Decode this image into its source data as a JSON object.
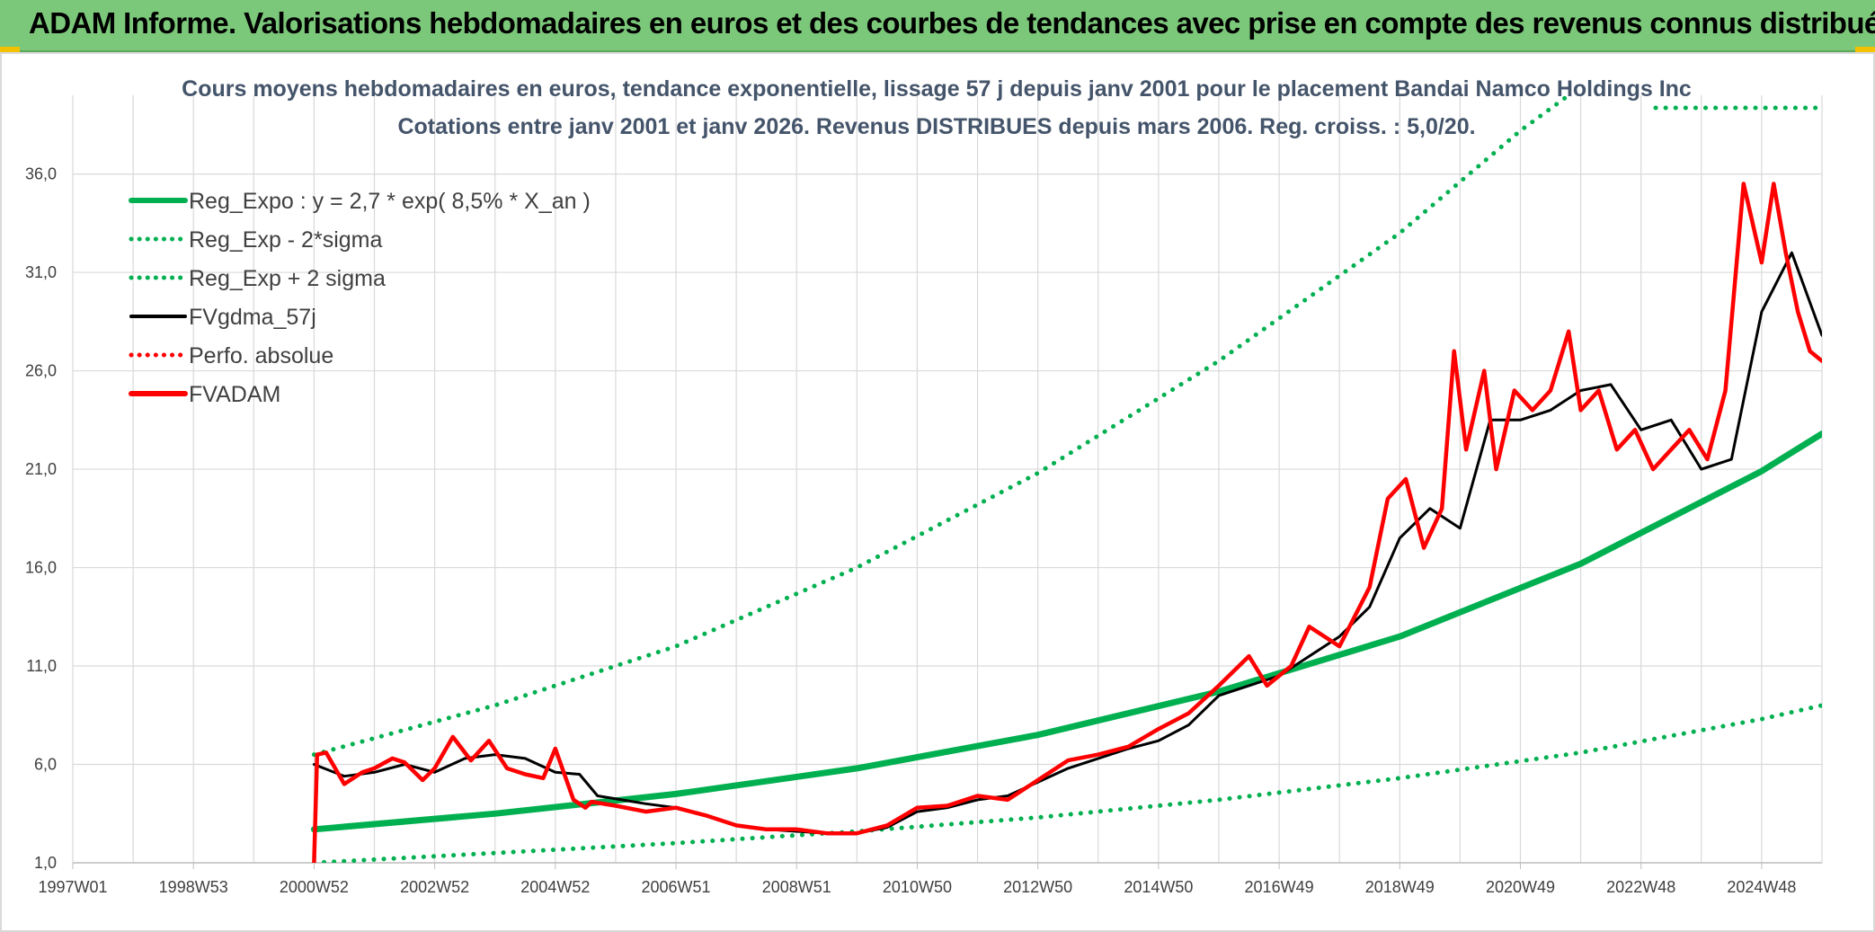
{
  "header": {
    "title": "ADAM Informe. Valorisations hebdomadaires en euros et des courbes de tendances avec prise en compte des revenus connus distribués"
  },
  "colors": {
    "green": "#00b050",
    "red": "#ff0000",
    "black": "#000000",
    "grid": "#d9d9d9",
    "header_bg": "#7cc87a"
  },
  "chart_data": {
    "type": "line",
    "title": "Cours moyens hebdomadaires en euros, tendance exponentielle, lissage 57 j depuis janv 2001 pour le placement Bandai Namco Holdings Inc",
    "subtitle": "Cotations entre janv 2001 et janv 2026. Revenus DISTRIBUES depuis mars 2006. Reg. croiss. : 5,0/20.",
    "xlabel": "",
    "ylabel": "",
    "xlim": [
      1997.0,
      2026.0
    ],
    "ylim": [
      1.0,
      40.0
    ],
    "y_ticks": [
      1.0,
      6.0,
      11.0,
      16.0,
      21.0,
      26.0,
      31.0,
      36.0
    ],
    "y_tick_labels": [
      "1,0",
      "6,0",
      "11,0",
      "16,0",
      "21,0",
      "26,0",
      "31,0",
      "36,0"
    ],
    "x_ticks": [
      1997.0,
      1999.0,
      2001.0,
      2003.0,
      2005.0,
      2007.0,
      2009.0,
      2011.0,
      2013.0,
      2015.0,
      2017.0,
      2019.0,
      2021.0,
      2023.0,
      2025.0
    ],
    "x_tick_labels": [
      "1997W01",
      "1998W53",
      "2000W52",
      "2002W52",
      "2004W52",
      "2006W51",
      "2008W51",
      "2010W50",
      "2012W50",
      "2014W50",
      "2016W49",
      "2018W49",
      "2020W49",
      "2022W48",
      "2024W48"
    ],
    "legend_position": "top-left",
    "legend": [
      {
        "label": "Reg_Expo : y = 2,7 * exp( 8,5% *  X_an )",
        "style": "solid-thick",
        "color": "#00b050"
      },
      {
        "label": "Reg_Exp - 2*sigma",
        "style": "dotted",
        "color": "#00b050"
      },
      {
        "label": "Reg_Exp + 2 sigma",
        "style": "dotted",
        "color": "#00b050"
      },
      {
        "label": "FVgdma_57j",
        "style": "solid",
        "color": "#000000"
      },
      {
        "label": "Perfo. absolue",
        "style": "dotted",
        "color": "#ff0000"
      },
      {
        "label": "FVADAM",
        "style": "solid-thick",
        "color": "#ff0000"
      }
    ],
    "series": [
      {
        "name": "Reg_Expo",
        "color": "#00b050",
        "style": "solid",
        "x": [
          2001.0,
          2004.0,
          2007.0,
          2010.0,
          2013.0,
          2016.0,
          2019.0,
          2022.0,
          2025.0,
          2026.0
        ],
        "y": [
          2.7,
          3.5,
          4.5,
          5.8,
          7.5,
          9.7,
          12.5,
          16.2,
          20.9,
          22.8
        ]
      },
      {
        "name": "Reg_Exp - 2*sigma",
        "color": "#00b050",
        "style": "dotted",
        "x": [
          2001.0,
          2004.0,
          2007.0,
          2010.0,
          2013.0,
          2016.0,
          2019.0,
          2022.0,
          2025.0,
          2026.0
        ],
        "y": [
          1.0,
          1.5,
          2.0,
          2.6,
          3.3,
          4.2,
          5.3,
          6.6,
          8.3,
          9.0
        ]
      },
      {
        "name": "Reg_Exp + 2 sigma",
        "color": "#00b050",
        "style": "dotted",
        "x": [
          2001.0,
          2004.0,
          2007.0,
          2010.0,
          2013.0,
          2016.0,
          2019.0,
          2020.0,
          2021.0,
          2021.8
        ],
        "y": [
          6.5,
          9.0,
          12.0,
          16.0,
          20.8,
          26.5,
          33.0,
          35.6,
          38.2,
          40.0
        ]
      },
      {
        "name": "FVgdma_57j",
        "color": "#000000",
        "style": "solid",
        "x": [
          2001.0,
          2001.5,
          2002.0,
          2002.5,
          2003.0,
          2003.5,
          2004.0,
          2004.5,
          2005.0,
          2005.4,
          2005.7,
          2006.5,
          2007.0,
          2007.5,
          2008.0,
          2008.5,
          2009.0,
          2009.5,
          2010.0,
          2010.5,
          2011.0,
          2011.5,
          2012.0,
          2012.5,
          2013.0,
          2013.5,
          2014.0,
          2014.5,
          2015.0,
          2015.5,
          2016.0,
          2016.5,
          2017.0,
          2017.5,
          2018.0,
          2018.5,
          2019.0,
          2019.5,
          2020.0,
          2020.5,
          2021.0,
          2021.5,
          2022.0,
          2022.5,
          2023.0,
          2023.5,
          2024.0,
          2024.5,
          2025.0,
          2025.5,
          2026.0
        ],
        "y": [
          6.0,
          5.4,
          5.6,
          6.0,
          5.6,
          6.3,
          6.5,
          6.3,
          5.6,
          5.5,
          4.4,
          4.0,
          3.8,
          3.4,
          2.9,
          2.7,
          2.6,
          2.5,
          2.5,
          2.8,
          3.6,
          3.8,
          4.2,
          4.4,
          5.1,
          5.8,
          6.3,
          6.8,
          7.2,
          8.0,
          9.5,
          10.0,
          10.5,
          11.5,
          12.5,
          14.0,
          17.5,
          19.0,
          18.0,
          23.5,
          23.5,
          24.0,
          25.0,
          25.3,
          23.0,
          23.5,
          21.0,
          21.5,
          29.0,
          32.0,
          27.8
        ]
      },
      {
        "name": "FVADAM",
        "color": "#ff0000",
        "style": "solid",
        "x": [
          2001.0,
          2001.05,
          2001.2,
          2001.5,
          2001.8,
          2002.0,
          2002.3,
          2002.5,
          2002.8,
          2003.0,
          2003.3,
          2003.6,
          2003.9,
          2004.2,
          2004.5,
          2004.8,
          2005.0,
          2005.3,
          2005.5,
          2005.6,
          2006.0,
          2006.5,
          2007.0,
          2007.5,
          2008.0,
          2008.5,
          2009.0,
          2009.5,
          2010.0,
          2010.5,
          2011.0,
          2011.5,
          2012.0,
          2012.5,
          2013.0,
          2013.5,
          2014.0,
          2014.5,
          2015.0,
          2015.5,
          2016.0,
          2016.5,
          2016.8,
          2017.2,
          2017.5,
          2018.0,
          2018.5,
          2018.8,
          2019.1,
          2019.4,
          2019.7,
          2019.9,
          2020.1,
          2020.4,
          2020.6,
          2020.9,
          2021.2,
          2021.5,
          2021.8,
          2022.0,
          2022.3,
          2022.6,
          2022.9,
          2023.2,
          2023.5,
          2023.8,
          2024.1,
          2024.4,
          2024.7,
          2025.0,
          2025.2,
          2025.4,
          2025.6,
          2025.8,
          2026.0
        ],
        "y": [
          1.0,
          6.5,
          6.6,
          5.0,
          5.6,
          5.8,
          6.3,
          6.1,
          5.2,
          5.8,
          7.4,
          6.2,
          7.2,
          5.8,
          5.5,
          5.3,
          6.8,
          4.2,
          3.8,
          4.1,
          3.9,
          3.6,
          3.8,
          3.4,
          2.9,
          2.7,
          2.7,
          2.5,
          2.5,
          2.9,
          3.8,
          3.9,
          4.4,
          4.2,
          5.2,
          6.2,
          6.5,
          6.9,
          7.8,
          8.6,
          10.0,
          11.5,
          10.0,
          11.0,
          13.0,
          12.0,
          15.0,
          19.5,
          20.5,
          17.0,
          19.0,
          27.0,
          22.0,
          26.0,
          21.0,
          25.0,
          24.0,
          25.0,
          28.0,
          24.0,
          25.0,
          22.0,
          23.0,
          21.0,
          22.0,
          23.0,
          21.5,
          25.0,
          35.5,
          31.5,
          35.5,
          32.0,
          29.0,
          27.0,
          26.5
        ]
      }
    ]
  }
}
